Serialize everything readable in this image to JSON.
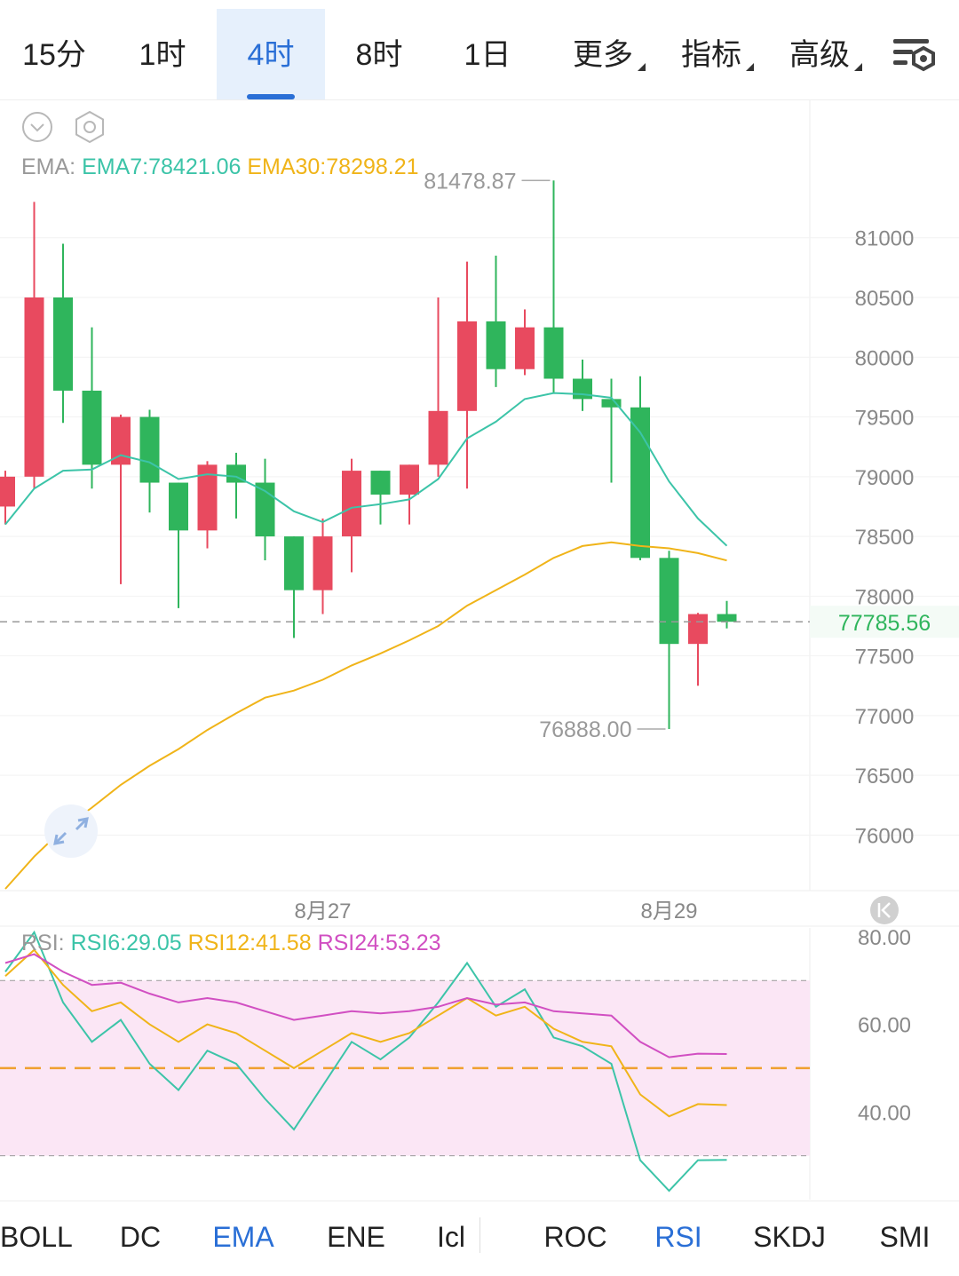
{
  "tabs": [
    {
      "label": "15分",
      "active": false
    },
    {
      "label": "1时",
      "active": false
    },
    {
      "label": "4时",
      "active": true
    },
    {
      "label": "8时",
      "active": false
    },
    {
      "label": "1日",
      "active": false
    },
    {
      "label": "更多",
      "active": false,
      "dropdown": true
    },
    {
      "label": "指标",
      "active": false,
      "dropdown": true
    },
    {
      "label": "高级",
      "active": false,
      "dropdown": true
    }
  ],
  "icons": {
    "settings": "chart-settings-icon",
    "collapse": "chevron-down-circle-icon",
    "hex": "hexagon-settings-icon",
    "expand": "expand-arrows-icon",
    "scroll_latest": "scroll-to-latest-icon"
  },
  "ema_legend": {
    "label": "EMA:",
    "ema7": "EMA7:78421.06",
    "ema30": "EMA30:78298.21"
  },
  "rsi_legend": {
    "label": "RSI:",
    "rsi6": "RSI6:29.05",
    "rsi12": "RSI12:41.58",
    "rsi24": "RSI24:53.23"
  },
  "colors": {
    "up": "#e84a5f",
    "down": "#2fb55c",
    "ema7": "#3cc4a8",
    "ema30": "#f0b419",
    "rsi6": "#3cc4a8",
    "rsi12": "#f0b419",
    "rsi24": "#d14fc2",
    "accent": "#2a6fd6"
  },
  "chart_data": [
    {
      "type": "candlestick",
      "y_ticks": [
        81000,
        80500,
        80000,
        79500,
        79000,
        78500,
        78000,
        77500,
        77000,
        76500,
        76000
      ],
      "ylim": [
        75550,
        82150
      ],
      "x_ticks": [
        {
          "label": "8月27",
          "index": 11
        },
        {
          "label": "8月29",
          "index": 23
        }
      ],
      "current_price": "77785.56",
      "current_value": 77785.56,
      "high_label": {
        "text": "81478.87",
        "index": 19,
        "value": 81478.87
      },
      "low_label": {
        "text": "76888.00",
        "index": 23,
        "value": 76888.0
      },
      "candles": [
        {
          "o": 78750,
          "h": 79050,
          "l": 78600,
          "c": 79000
        },
        {
          "o": 79000,
          "h": 81300,
          "l": 78900,
          "c": 80500
        },
        {
          "o": 80500,
          "h": 80950,
          "l": 79450,
          "c": 79720
        },
        {
          "o": 79720,
          "h": 80250,
          "l": 78900,
          "c": 79100
        },
        {
          "o": 79100,
          "h": 79520,
          "l": 78100,
          "c": 79500
        },
        {
          "o": 79500,
          "h": 79560,
          "l": 78700,
          "c": 78950
        },
        {
          "o": 78950,
          "h": 78950,
          "l": 77900,
          "c": 78550
        },
        {
          "o": 78550,
          "h": 79130,
          "l": 78400,
          "c": 79100
        },
        {
          "o": 79100,
          "h": 79200,
          "l": 78650,
          "c": 78950
        },
        {
          "o": 78950,
          "h": 79150,
          "l": 78300,
          "c": 78500
        },
        {
          "o": 78500,
          "h": 78500,
          "l": 77650,
          "c": 78050
        },
        {
          "o": 78050,
          "h": 78650,
          "l": 77850,
          "c": 78500
        },
        {
          "o": 78500,
          "h": 79150,
          "l": 78200,
          "c": 79050
        },
        {
          "o": 79050,
          "h": 79050,
          "l": 78600,
          "c": 78850
        },
        {
          "o": 78850,
          "h": 79100,
          "l": 78600,
          "c": 79100
        },
        {
          "o": 79100,
          "h": 80500,
          "l": 79000,
          "c": 79550
        },
        {
          "o": 79550,
          "h": 80800,
          "l": 78900,
          "c": 80300
        },
        {
          "o": 80300,
          "h": 80850,
          "l": 79750,
          "c": 79900
        },
        {
          "o": 79900,
          "h": 80400,
          "l": 79850,
          "c": 80250
        },
        {
          "o": 80250,
          "h": 81478.87,
          "l": 79700,
          "c": 79820
        },
        {
          "o": 79820,
          "h": 79980,
          "l": 79550,
          "c": 79650
        },
        {
          "o": 79650,
          "h": 79820,
          "l": 78950,
          "c": 79580
        },
        {
          "o": 79580,
          "h": 79840,
          "l": 78300,
          "c": 78320
        },
        {
          "o": 78320,
          "h": 78380,
          "l": 76888.0,
          "c": 77600
        },
        {
          "o": 77600,
          "h": 77860,
          "l": 77250,
          "c": 77850
        },
        {
          "o": 77850,
          "h": 77960,
          "l": 77730,
          "c": 77785.56
        }
      ],
      "series": [
        {
          "name": "EMA7",
          "values": [
            78600,
            78900,
            79050,
            79060,
            79180,
            79120,
            78980,
            79020,
            79000,
            78880,
            78710,
            78620,
            78740,
            78770,
            78810,
            78980,
            79320,
            79460,
            79650,
            79700,
            79690,
            79660,
            79370,
            78960,
            78650,
            78421.06
          ]
        },
        {
          "name": "EMA30",
          "values": [
            75550,
            75820,
            76050,
            76230,
            76420,
            76580,
            76720,
            76880,
            77020,
            77150,
            77210,
            77300,
            77420,
            77520,
            77630,
            77750,
            77920,
            78050,
            78180,
            78320,
            78420,
            78450,
            78420,
            78400,
            78360,
            78298.21
          ]
        }
      ]
    },
    {
      "type": "line",
      "y_ticks": [
        80.0,
        60.0,
        40.0
      ],
      "ylim": [
        20,
        82
      ],
      "reference_lines": [
        70,
        50,
        30
      ],
      "series": [
        {
          "name": "RSI6",
          "values": [
            72,
            81,
            65,
            56,
            61,
            51,
            45,
            54,
            51,
            43,
            36,
            46,
            56,
            52,
            57,
            65,
            74,
            64,
            68,
            57,
            55,
            51,
            29,
            22,
            29,
            29.05
          ]
        },
        {
          "name": "RSI12",
          "values": [
            71,
            77,
            69,
            63,
            65,
            60,
            56,
            60,
            58,
            54,
            50,
            54,
            58,
            56,
            58,
            62,
            66,
            62,
            64,
            59,
            56,
            55,
            44,
            39,
            41.8,
            41.58
          ]
        },
        {
          "name": "RSI24",
          "values": [
            74,
            76,
            72,
            69,
            69.5,
            67,
            65,
            66,
            65,
            63,
            61,
            62,
            63,
            62.5,
            63,
            64,
            66,
            64.5,
            65,
            63,
            62.5,
            62,
            56,
            52.5,
            53.3,
            53.23
          ]
        }
      ]
    }
  ],
  "indicators": [
    {
      "label": "BOLL",
      "active": false
    },
    {
      "label": "DC",
      "active": false
    },
    {
      "label": "EMA",
      "active": true
    },
    {
      "label": "ENE",
      "active": false
    },
    {
      "label": "Icl",
      "active": false
    },
    {
      "label": "ROC",
      "active": false
    },
    {
      "label": "RSI",
      "active": true
    },
    {
      "label": "SKDJ",
      "active": false
    },
    {
      "label": "SMI",
      "active": false
    }
  ]
}
